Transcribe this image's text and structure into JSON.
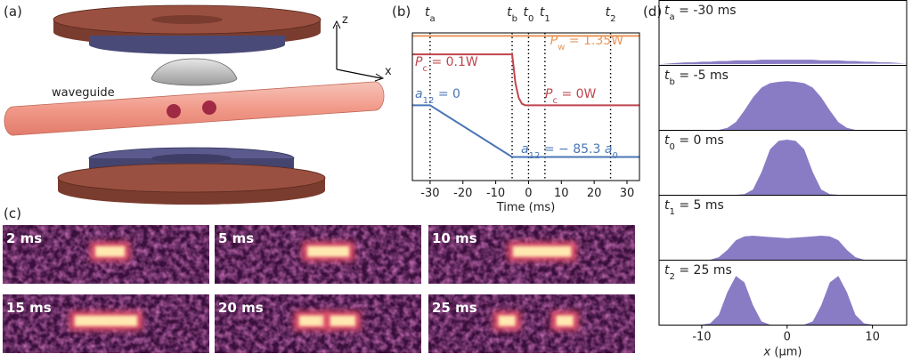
{
  "panel_a": {
    "label": "(a)",
    "waveguide": "waveguide",
    "axis_z": "z",
    "axis_x": "x"
  },
  "panel_c": {
    "label": "(c)",
    "images": [
      "2 ms",
      "5 ms",
      "10 ms",
      "15 ms",
      "20 ms",
      "25 ms"
    ]
  },
  "chart_data": [
    {
      "type": "line",
      "label": "(b)",
      "xlabel": "Time (ms)",
      "xlim": [
        -35.4,
        33.8
      ],
      "xticks": [
        -30,
        -20,
        -10,
        0,
        10,
        20,
        30
      ],
      "ylim": [
        0,
        1
      ],
      "series": [
        {
          "color": "#e8965a",
          "x": [
            -35.4,
            33.8
          ],
          "values": [
            0.98,
            0.98
          ]
        },
        {
          "color": "#c0464e",
          "x": [
            -35.4,
            -5,
            -4.5,
            -4,
            -3,
            -2,
            -1,
            33.8
          ],
          "values": [
            0.855,
            0.855,
            0.76,
            0.66,
            0.56,
            0.52,
            0.51,
            0.51
          ]
        },
        {
          "color": "#4a76b5",
          "x": [
            -35.4,
            -30,
            -5,
            33.8
          ],
          "values": [
            0.51,
            0.51,
            0.16,
            0.16
          ]
        }
      ],
      "annotations": [
        {
          "symbol": "P",
          "sub": "w",
          "text": " = 1.35W",
          "color": "#e8965a"
        },
        {
          "symbol": "P",
          "sub": "c",
          "text": " = 0.1W",
          "color": "#c0464e"
        },
        {
          "symbol": "P",
          "sub": "c",
          "text": " = 0W",
          "color": "#c0464e"
        },
        {
          "symbol": "a",
          "sub": "12",
          "text": " = 0",
          "color": "#4a76b5"
        },
        {
          "symbol": "a",
          "sub": "12",
          "text": " = − 85.3 ",
          "symbol2": "a",
          "sub2": "0",
          "color": "#4a76b5"
        }
      ],
      "markers": [
        {
          "symbol": "t",
          "sub": "a",
          "x": -30
        },
        {
          "symbol": "t",
          "sub": "b",
          "x": -5
        },
        {
          "symbol": "t",
          "sub": "0",
          "x": 0
        },
        {
          "symbol": "t",
          "sub": "1",
          "x": 5
        },
        {
          "symbol": "t",
          "sub": "2",
          "x": 25
        }
      ]
    },
    {
      "type": "area",
      "label": "(d)",
      "xlabel": {
        "symbol": "x",
        "text": " (μm)"
      },
      "color": "#8a7cc4",
      "xlim": [
        -15,
        14
      ],
      "xticks": [
        -10,
        0,
        10
      ],
      "ylim": [
        0,
        1
      ],
      "x": [
        -15,
        -14,
        -13,
        -12,
        -11,
        -10,
        -9,
        -8,
        -7,
        -6,
        -5,
        -4,
        -3,
        -2,
        -1,
        0,
        1,
        2,
        3,
        4,
        5,
        6,
        7,
        8,
        9,
        10,
        11,
        12,
        13,
        14
      ],
      "panels": [
        {
          "title": {
            "symbol": "t",
            "sub": "a",
            "text": " = -30 ms"
          },
          "values": [
            0.01,
            0.02,
            0.03,
            0.04,
            0.04,
            0.05,
            0.05,
            0.06,
            0.06,
            0.07,
            0.07,
            0.07,
            0.08,
            0.08,
            0.08,
            0.08,
            0.08,
            0.08,
            0.08,
            0.07,
            0.07,
            0.07,
            0.06,
            0.06,
            0.05,
            0.05,
            0.04,
            0.04,
            0.03,
            0.02
          ]
        },
        {
          "title": {
            "symbol": "t",
            "sub": "b",
            "text": " = -5 ms"
          },
          "values": [
            0,
            0,
            0,
            0,
            0,
            0,
            0,
            0,
            0.03,
            0.12,
            0.3,
            0.5,
            0.65,
            0.72,
            0.74,
            0.75,
            0.74,
            0.72,
            0.65,
            0.5,
            0.3,
            0.12,
            0.03,
            0,
            0,
            0,
            0,
            0,
            0,
            0
          ]
        },
        {
          "title": {
            "symbol": "t",
            "sub": "0",
            "text": " = 0 ms"
          },
          "values": [
            0,
            0,
            0,
            0,
            0,
            0,
            0,
            0,
            0,
            0,
            0.01,
            0.08,
            0.35,
            0.7,
            0.83,
            0.85,
            0.83,
            0.7,
            0.35,
            0.08,
            0.01,
            0,
            0,
            0,
            0,
            0,
            0,
            0,
            0,
            0
          ]
        },
        {
          "title": {
            "symbol": "t",
            "sub": "1",
            "text": " = 5 ms"
          },
          "values": [
            0,
            0,
            0,
            0,
            0,
            0,
            0,
            0.04,
            0.15,
            0.3,
            0.36,
            0.37,
            0.36,
            0.35,
            0.34,
            0.33,
            0.34,
            0.35,
            0.36,
            0.37,
            0.36,
            0.3,
            0.15,
            0.04,
            0,
            0,
            0,
            0,
            0,
            0
          ]
        },
        {
          "title": {
            "symbol": "t",
            "sub": "2",
            "text": " = 25 ms"
          },
          "values": [
            0,
            0,
            0,
            0,
            0,
            0,
            0.02,
            0.15,
            0.5,
            0.75,
            0.65,
            0.3,
            0.05,
            0,
            0,
            0,
            0,
            0,
            0.05,
            0.3,
            0.65,
            0.75,
            0.5,
            0.15,
            0.02,
            0,
            0,
            0,
            0,
            0
          ]
        }
      ]
    }
  ]
}
